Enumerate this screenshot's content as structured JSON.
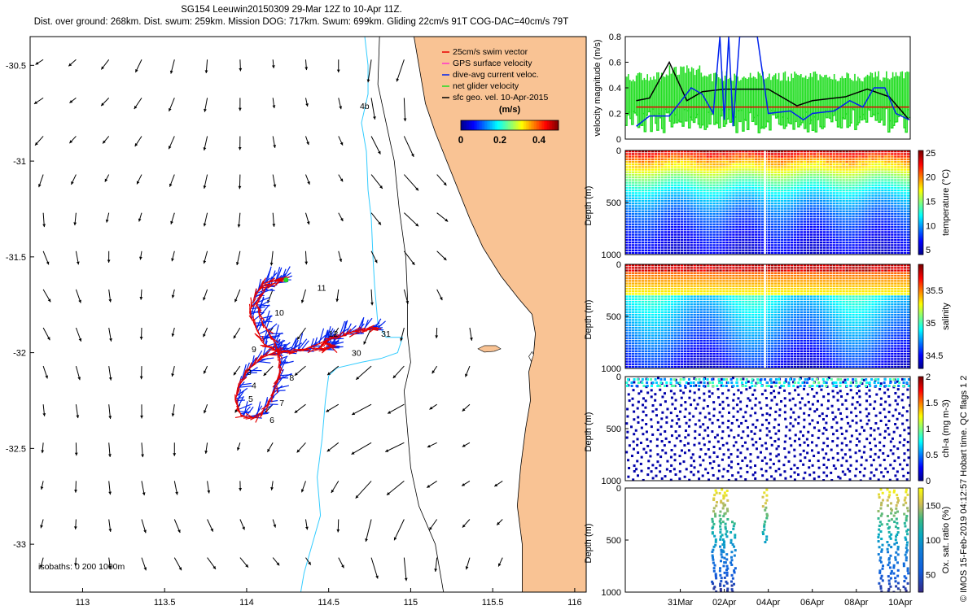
{
  "header": {
    "title": "SG154 Leeuwin20150309 29-Mar 12Z to 10-Apr 11Z.",
    "subtitle": "Dist. over ground: 268km. Dist. swum: 259km. Mission DOG: 717km. Swum: 699km. Gliding 22cm/s 91T COG-DAC=40cm/s 79T"
  },
  "credit": "© IMOS 15-Feb-2019 04:12:57 Hobart time. QC flags 1  2",
  "colors": {
    "land": "#f9c394",
    "coast": "#000000",
    "isobath_200": "#000000",
    "isobath_1000": "#33ccff",
    "swim": "#e60000",
    "gps": "#ff33cc",
    "dac": "#0022ee",
    "net": "#22dd22",
    "geo": "#000000"
  },
  "chart_data": [
    {
      "type": "map",
      "xlim": [
        112.68,
        116.07
      ],
      "ylim": [
        -33.25,
        -30.35
      ],
      "xticks": [
        113,
        113.5,
        114,
        114.5,
        115,
        115.5,
        116
      ],
      "xtick_labels": [
        "113",
        "113.5",
        "114",
        "114.5",
        "115",
        "115.5",
        "116"
      ],
      "yticks": [
        -30.5,
        -31,
        -31.5,
        -32,
        -32.5,
        -33
      ],
      "ytick_labels": [
        "-30.5",
        "-31",
        "-31.5",
        "-32",
        "-32.5",
        "-33"
      ],
      "legend": [
        "25cm/s swim vector",
        "GPS surface velocity",
        "dive-avg current veloc.",
        "net glider velocity",
        "sfc geo. vel. 10-Apr-2015"
      ],
      "colorbar": {
        "label": "(m/s)",
        "range": [
          0,
          0.5
        ],
        "ticks": [
          0,
          0.2,
          0.4
        ],
        "tick_labels": [
          "0",
          "0.2",
          "0.4"
        ]
      },
      "isobath_label": "isobaths: 0   200  1000m",
      "track_day_labels": [
        {
          "text": "11",
          "lon": 114.43,
          "lat": -31.66
        },
        {
          "text": "10",
          "lon": 114.17,
          "lat": -31.79
        },
        {
          "text": "12",
          "lon": 114.5,
          "lat": -31.9
        },
        {
          "text": "31",
          "lon": 114.82,
          "lat": -31.9
        },
        {
          "text": "30",
          "lon": 114.64,
          "lat": -32.0
        },
        {
          "text": "9",
          "lon": 114.03,
          "lat": -31.98
        },
        {
          "text": "8",
          "lon": 114.26,
          "lat": -32.13
        },
        {
          "text": "3",
          "lon": 114.0,
          "lat": -32.1
        },
        {
          "text": "4",
          "lon": 114.03,
          "lat": -32.17
        },
        {
          "text": "5",
          "lon": 114.01,
          "lat": -32.24
        },
        {
          "text": "7",
          "lon": 114.2,
          "lat": -32.26
        },
        {
          "text": "6",
          "lon": 114.14,
          "lat": -32.35
        },
        {
          "text": "4b",
          "lon": 114.69,
          "lat": -30.71
        }
      ]
    },
    {
      "type": "line",
      "ylabel": "velocity magnitude (m/s)",
      "ylim": [
        0,
        0.8
      ],
      "yticks": [
        0,
        0.2,
        0.4,
        0.6,
        0.8
      ],
      "ytick_labels": [
        "0",
        "0.2",
        "0.4",
        "0.6",
        "0.8"
      ],
      "x_days": [
        -0.5,
        12.45
      ],
      "series": [
        {
          "name": "swim",
          "x": [
            0,
            12.4
          ],
          "values": [
            0.25,
            0.25
          ]
        },
        {
          "name": "geo",
          "x": [
            0,
            0.6,
            1.5,
            2.3,
            3,
            4,
            6,
            7.3,
            8,
            9.5,
            10.5,
            11.5,
            12.4
          ],
          "values": [
            0.3,
            0.32,
            0.6,
            0.3,
            0.37,
            0.39,
            0.39,
            0.26,
            0.3,
            0.33,
            0.39,
            0.33,
            0.15
          ]
        },
        {
          "name": "dac",
          "x": [
            0,
            0.6,
            1.5,
            2.5,
            3,
            3.5,
            3.8,
            4,
            4.2,
            4.4,
            4.7,
            5,
            5.5,
            6,
            7,
            7.6,
            8,
            9,
            9.7,
            10.3,
            10.8,
            11.3,
            11.8,
            12.4
          ],
          "values": [
            0.1,
            0.18,
            0.18,
            0.4,
            0.35,
            0.2,
            0.8,
            0.15,
            0.8,
            0.1,
            0.8,
            0.8,
            0.8,
            0.2,
            0.22,
            0.15,
            0.2,
            0.22,
            0.3,
            0.25,
            0.4,
            0.4,
            0.2,
            0.15
          ]
        }
      ]
    },
    {
      "type": "heatmap",
      "name": "temperature",
      "ylabel": "Depth (m)",
      "ylim": [
        1000,
        0
      ],
      "yticks": [
        0,
        500,
        1000
      ],
      "ytick_labels": [
        "0",
        "500",
        "1000"
      ],
      "colorbar": {
        "label": "temperature (°C)",
        "range": [
          4,
          25.5
        ],
        "ticks": [
          5,
          10,
          15,
          20,
          25
        ],
        "tick_labels": [
          "5",
          "10",
          "15",
          "20",
          "25"
        ]
      }
    },
    {
      "type": "heatmap",
      "name": "salinity",
      "ylabel": "Depth (m)",
      "ylim": [
        1000,
        0
      ],
      "yticks": [
        0,
        500,
        1000
      ],
      "ytick_labels": [
        "0",
        "500",
        "1000"
      ],
      "colorbar": {
        "label": "salinity",
        "range": [
          34.3,
          35.9
        ],
        "ticks": [
          34.5,
          35,
          35.5
        ],
        "tick_labels": [
          "34.5",
          "35",
          "35.5"
        ]
      }
    },
    {
      "type": "scatter",
      "name": "chl-a",
      "ylabel": "Depth (m)",
      "ylim": [
        1000,
        0
      ],
      "yticks": [
        0,
        500,
        1000
      ],
      "ytick_labels": [
        "0",
        "500",
        "1000"
      ],
      "colorbar": {
        "label": "chl-a (mg m-3)",
        "range": [
          0,
          2
        ],
        "ticks": [
          0,
          0.5,
          1,
          1.5,
          2
        ],
        "tick_labels": [
          "0",
          "0.5",
          "1",
          "1.5",
          "2"
        ]
      }
    },
    {
      "type": "scatter",
      "name": "oxygen",
      "ylabel": "Depth (m)",
      "ylim": [
        1000,
        0
      ],
      "yticks": [
        0,
        500,
        1000
      ],
      "ytick_labels": [
        "0",
        "500",
        "1000"
      ],
      "x_days": [
        -0.5,
        12.45
      ],
      "xticks": [
        2,
        4,
        6,
        8,
        10,
        12
      ],
      "xtick_labels": [
        "31Mar",
        "02Apr",
        "04Apr",
        "06Apr",
        "08Apr",
        "10Apr"
      ],
      "oxy_profile_days": [
        3.5,
        3.85,
        4.0,
        4.35,
        5.8,
        11.05,
        11.45,
        11.75,
        12.2
      ],
      "colorbar": {
        "label": "Ox. sat. ratio (%)",
        "range": [
          25,
          175
        ],
        "ticks": [
          50,
          100,
          150
        ],
        "tick_labels": [
          "50",
          "100",
          "150"
        ]
      }
    }
  ]
}
